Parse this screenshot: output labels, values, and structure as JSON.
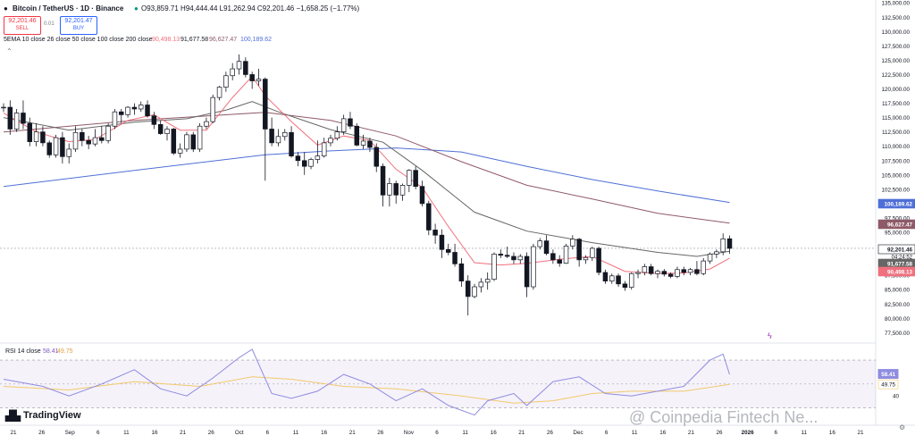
{
  "colors": {
    "up": "#26262a",
    "down": "#131722",
    "ema10": "#f0707d",
    "ema26": "#666666",
    "ema50": "#8e5a68",
    "ema100": "#4f6fd6",
    "rsi": "#8f8ce0",
    "rsi_ma": "#f2c96b",
    "price_tag": "#131722",
    "sell": "#f23645",
    "buy": "#2962ff"
  },
  "header": {
    "symbol": "Bitcoin / TetherUS · 1D · Binance",
    "ohlc": "O93,859.71 H94,444.44 L91,262.94 C92,201.46 −1,658.25 (−1.77%)",
    "sell_price": "92,201.46",
    "sell_label": "SELL",
    "spread": "0.01",
    "buy_price": "92,201.47",
    "buy_label": "BUY",
    "ema_legend": "5EMA 10 close 26 close 50 close 100 close 200 close",
    "ema_values": [
      "90,498.13",
      "91,677.58",
      "96,627.47",
      "100,189.62"
    ],
    "rsi_legend": "RSI 14 close",
    "rsi_value": "58.41",
    "rsi_ma_value": "49.75",
    "countdown": "04:24:52",
    "logo": "TradingView",
    "watermark": "@ Coinpedia Fintech Ne..."
  },
  "chart_data": {
    "type": "candlestick",
    "y_ticks": [
      77500,
      80000,
      82500,
      85000,
      87500,
      90000,
      92500,
      95000,
      97500,
      100000,
      102500,
      105000,
      107500,
      110000,
      112500,
      115000,
      117500,
      120000,
      122500,
      125000,
      127500,
      130000,
      132500,
      135000
    ],
    "y_range": [
      76000,
      135500
    ],
    "x_tick_labels": [
      "21",
      "26",
      "Sep",
      "6",
      "11",
      "16",
      "21",
      "26",
      "Oct",
      "6",
      "11",
      "16",
      "21",
      "26",
      "Nov",
      "6",
      "11",
      "16",
      "21",
      "26",
      "Dec",
      "6",
      "11",
      "16",
      "21",
      "26",
      "2026",
      "6",
      "11",
      "16",
      "21"
    ],
    "price_labels": [
      {
        "value": 100189.62,
        "text": "100,189.62",
        "color": "ema100"
      },
      {
        "value": 96627.47,
        "text": "96,627.47",
        "color": "ema50"
      },
      {
        "value": 92201.46,
        "text": "92,201.46",
        "color": "price_tag"
      },
      {
        "value": 91677.58,
        "text": "91,677.58",
        "color": "ema26"
      },
      {
        "value": 90498.13,
        "text": "90,498.13",
        "color": "ema10"
      }
    ],
    "candles": [
      [
        116700,
        117500,
        116000,
        116800
      ],
      [
        116800,
        118000,
        112000,
        113000
      ],
      [
        113000,
        116500,
        112500,
        115800
      ],
      [
        115800,
        118000,
        113000,
        114000
      ],
      [
        114000,
        115000,
        110000,
        110800
      ],
      [
        110800,
        114000,
        110000,
        112500
      ],
      [
        112500,
        113500,
        110000,
        110600
      ],
      [
        110600,
        111000,
        108000,
        108500
      ],
      [
        108500,
        112000,
        108000,
        111500
      ],
      [
        111500,
        112500,
        107000,
        108200
      ],
      [
        108200,
        110500,
        107000,
        109500
      ],
      [
        109500,
        113500,
        109000,
        112400
      ],
      [
        112400,
        113000,
        110000,
        111000
      ],
      [
        111000,
        111800,
        109500,
        110400
      ],
      [
        110400,
        113000,
        110000,
        111500
      ],
      [
        111500,
        113500,
        110500,
        111000
      ],
      [
        111000,
        114000,
        110500,
        113500
      ],
      [
        113500,
        116500,
        113000,
        116000
      ],
      [
        116000,
        116500,
        114000,
        115500
      ],
      [
        115500,
        117000,
        115000,
        116800
      ],
      [
        116800,
        117500,
        115500,
        116500
      ],
      [
        116500,
        117800,
        116000,
        117200
      ],
      [
        117200,
        118000,
        115000,
        115300
      ],
      [
        115300,
        116000,
        113000,
        113800
      ],
      [
        113800,
        114500,
        112000,
        112200
      ],
      [
        112200,
        113500,
        111000,
        113000
      ],
      [
        113000,
        113200,
        108500,
        108800
      ],
      [
        108800,
        110500,
        108000,
        109500
      ],
      [
        109500,
        112500,
        109000,
        112000
      ],
      [
        112000,
        112500,
        109000,
        109500
      ],
      [
        109500,
        114000,
        109000,
        113500
      ],
      [
        113500,
        115000,
        113000,
        114300
      ],
      [
        114300,
        119000,
        114000,
        118500
      ],
      [
        118500,
        120500,
        118000,
        120300
      ],
      [
        120300,
        123000,
        119500,
        122300
      ],
      [
        122300,
        124500,
        121500,
        123500
      ],
      [
        123500,
        126000,
        122500,
        124800
      ],
      [
        124800,
        125500,
        122000,
        122500
      ],
      [
        122500,
        123000,
        120000,
        121400
      ],
      [
        121400,
        123500,
        120500,
        121700
      ],
      [
        121700,
        122000,
        104000,
        113000
      ],
      [
        113000,
        115000,
        110000,
        110600
      ],
      [
        110600,
        113000,
        110000,
        111700
      ],
      [
        111700,
        113000,
        111000,
        112400
      ],
      [
        112400,
        113500,
        108000,
        108300
      ],
      [
        108300,
        109000,
        106500,
        107500
      ],
      [
        107500,
        109000,
        105000,
        106500
      ],
      [
        106500,
        108000,
        106000,
        107700
      ],
      [
        107700,
        111000,
        107000,
        108300
      ],
      [
        108300,
        111500,
        108000,
        110600
      ],
      [
        110600,
        112000,
        110000,
        111400
      ],
      [
        111400,
        113500,
        111000,
        112500
      ],
      [
        112500,
        115500,
        112000,
        114800
      ],
      [
        114800,
        116000,
        113000,
        113500
      ],
      [
        113500,
        114000,
        110000,
        110200
      ],
      [
        110200,
        112000,
        109500,
        110900
      ],
      [
        110900,
        111500,
        109000,
        109800
      ],
      [
        109800,
        110500,
        105500,
        106500
      ],
      [
        106500,
        107000,
        99500,
        101500
      ],
      [
        101500,
        104500,
        99500,
        103500
      ],
      [
        103500,
        104000,
        100000,
        101500
      ],
      [
        101500,
        103500,
        100500,
        103200
      ],
      [
        103200,
        106000,
        102000,
        105800
      ],
      [
        105800,
        106500,
        102500,
        103000
      ],
      [
        103000,
        104000,
        99500,
        100000
      ],
      [
        100000,
        100500,
        94500,
        95400
      ],
      [
        95400,
        96500,
        93000,
        94500
      ],
      [
        94500,
        95500,
        90500,
        92000
      ],
      [
        92000,
        93000,
        91000,
        91500
      ],
      [
        91500,
        93000,
        89000,
        89500
      ],
      [
        89500,
        90500,
        85500,
        86500
      ],
      [
        86500,
        87500,
        80500,
        83800
      ],
      [
        83800,
        86000,
        83500,
        85500
      ],
      [
        85500,
        87000,
        84500,
        86300
      ],
      [
        86300,
        88000,
        85000,
        86800
      ],
      [
        86800,
        91500,
        86500,
        91200
      ],
      [
        91200,
        92000,
        90500,
        91000
      ],
      [
        91000,
        92500,
        90500,
        90800
      ],
      [
        90800,
        91500,
        89500,
        90200
      ],
      [
        90200,
        91200,
        89500,
        90800
      ],
      [
        90800,
        91500,
        83700,
        85500
      ],
      [
        85500,
        93000,
        85000,
        92500
      ],
      [
        92500,
        94000,
        92000,
        93500
      ],
      [
        93500,
        94500,
        91000,
        91300
      ],
      [
        91300,
        92000,
        89500,
        90200
      ],
      [
        90200,
        91000,
        89000,
        89600
      ],
      [
        89600,
        93000,
        89500,
        92600
      ],
      [
        92600,
        94500,
        92000,
        93800
      ],
      [
        93800,
        94000,
        89000,
        90200
      ],
      [
        90200,
        91000,
        89500,
        90600
      ],
      [
        90600,
        92500,
        90000,
        92200
      ],
      [
        92200,
        92500,
        87500,
        88000
      ],
      [
        88000,
        88500,
        86000,
        86500
      ],
      [
        86500,
        87800,
        86000,
        87400
      ],
      [
        87400,
        87800,
        85500,
        86000
      ],
      [
        86000,
        86500,
        84800,
        85400
      ],
      [
        85400,
        88000,
        85000,
        87800
      ],
      [
        87800,
        88500,
        87000,
        88000
      ],
      [
        88000,
        89500,
        87500,
        89000
      ],
      [
        89000,
        89500,
        87500,
        87800
      ],
      [
        87800,
        88500,
        87000,
        88200
      ],
      [
        88200,
        88600,
        87300,
        87700
      ],
      [
        87700,
        88000,
        87000,
        87300
      ],
      [
        87300,
        89000,
        87000,
        88500
      ],
      [
        88500,
        89000,
        87500,
        88000
      ],
      [
        88000,
        88800,
        87500,
        88500
      ],
      [
        88500,
        90000,
        87500,
        87800
      ],
      [
        87800,
        90500,
        87500,
        90000
      ],
      [
        90000,
        91500,
        89500,
        91200
      ],
      [
        91200,
        92000,
        90500,
        91600
      ],
      [
        91600,
        94800,
        91000,
        93860
      ],
      [
        93860,
        94444,
        91263,
        92201
      ]
    ],
    "ema10": [
      [
        0,
        115800
      ],
      [
        5,
        112500
      ],
      [
        10,
        110800
      ],
      [
        14,
        111200
      ],
      [
        19,
        114500
      ],
      [
        23,
        115500
      ],
      [
        27,
        112800
      ],
      [
        31,
        112800
      ],
      [
        35,
        118500
      ],
      [
        38,
        122200
      ],
      [
        40,
        118800
      ],
      [
        44,
        114300
      ],
      [
        48,
        110200
      ],
      [
        52,
        111800
      ],
      [
        56,
        111000
      ],
      [
        60,
        106000
      ],
      [
        64,
        102800
      ],
      [
        68,
        96000
      ],
      [
        72,
        89700
      ],
      [
        76,
        89300
      ],
      [
        80,
        89600
      ],
      [
        85,
        90300
      ],
      [
        90,
        90800
      ],
      [
        95,
        88200
      ],
      [
        100,
        87800
      ],
      [
        104,
        87900
      ],
      [
        108,
        88600
      ],
      [
        111,
        90500
      ]
    ],
    "ema26": [
      [
        0,
        115000
      ],
      [
        10,
        112800
      ],
      [
        20,
        114200
      ],
      [
        28,
        114800
      ],
      [
        34,
        116300
      ],
      [
        38,
        117800
      ],
      [
        42,
        116000
      ],
      [
        50,
        112900
      ],
      [
        58,
        110700
      ],
      [
        64,
        105800
      ],
      [
        72,
        98500
      ],
      [
        80,
        95200
      ],
      [
        90,
        93200
      ],
      [
        100,
        91500
      ],
      [
        106,
        90800
      ],
      [
        111,
        91700
      ]
    ],
    "ema50": [
      [
        0,
        112500
      ],
      [
        20,
        114500
      ],
      [
        40,
        115900
      ],
      [
        50,
        114500
      ],
      [
        60,
        111800
      ],
      [
        70,
        107300
      ],
      [
        80,
        103200
      ],
      [
        90,
        100800
      ],
      [
        100,
        98300
      ],
      [
        111,
        96600
      ]
    ],
    "ema100": [
      [
        0,
        103000
      ],
      [
        20,
        105800
      ],
      [
        40,
        108500
      ],
      [
        50,
        109200
      ],
      [
        60,
        109700
      ],
      [
        70,
        109000
      ],
      [
        80,
        106500
      ],
      [
        90,
        104200
      ],
      [
        100,
        102200
      ],
      [
        111,
        100200
      ]
    ],
    "rsi": {
      "ticks": [
        40,
        58.41
      ],
      "band": [
        30,
        70
      ],
      "range": [
        17,
        82
      ],
      "values": [
        [
          0,
          54
        ],
        [
          6,
          48
        ],
        [
          10,
          40
        ],
        [
          15,
          50
        ],
        [
          20,
          62
        ],
        [
          24,
          46
        ],
        [
          28,
          40
        ],
        [
          32,
          55
        ],
        [
          36,
          72
        ],
        [
          38,
          79
        ],
        [
          41,
          42
        ],
        [
          44,
          38
        ],
        [
          48,
          44
        ],
        [
          52,
          58
        ],
        [
          56,
          50
        ],
        [
          60,
          36
        ],
        [
          64,
          46
        ],
        [
          68,
          32
        ],
        [
          72,
          24
        ],
        [
          74,
          36
        ],
        [
          78,
          42
        ],
        [
          80,
          32
        ],
        [
          84,
          52
        ],
        [
          88,
          56
        ],
        [
          92,
          42
        ],
        [
          96,
          40
        ],
        [
          100,
          44
        ],
        [
          104,
          48
        ],
        [
          108,
          70
        ],
        [
          110,
          75
        ],
        [
          111,
          58
        ]
      ],
      "ma_values": [
        [
          0,
          48
        ],
        [
          10,
          45
        ],
        [
          20,
          52
        ],
        [
          30,
          48
        ],
        [
          38,
          56
        ],
        [
          44,
          54
        ],
        [
          52,
          48
        ],
        [
          60,
          46
        ],
        [
          70,
          40
        ],
        [
          78,
          34
        ],
        [
          84,
          36
        ],
        [
          90,
          42
        ],
        [
          96,
          44
        ],
        [
          104,
          44
        ],
        [
          111,
          49.75
        ]
      ]
    }
  }
}
